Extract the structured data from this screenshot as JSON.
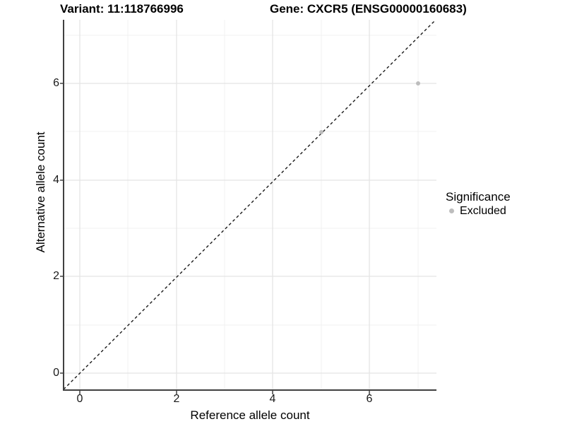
{
  "titles": {
    "variant": "Variant: 11:118766996",
    "gene": "Gene: CXCR5 (ENSG00000160683)"
  },
  "chart_data": {
    "type": "scatter",
    "title_left": "Variant: 11:118766996",
    "title_right": "Gene: CXCR5 (ENSG00000160683)",
    "xlabel": "Reference allele count",
    "ylabel": "Alternative allele count",
    "x_tick_labels": [
      "0",
      "2",
      "4",
      "6"
    ],
    "y_tick_labels": [
      "0",
      "2",
      "4",
      "6"
    ],
    "x_ticks": [
      0,
      2,
      4,
      6
    ],
    "y_ticks": [
      0,
      2,
      4,
      6
    ],
    "xlim": [
      -0.35,
      7.4
    ],
    "ylim": [
      -0.35,
      7.35
    ],
    "grid": "major and minor gridlines on, light gray",
    "points": [
      {
        "x": 5,
        "y": 5,
        "significance": "Excluded"
      },
      {
        "x": 7,
        "y": 6,
        "significance": "Excluded"
      }
    ],
    "reference_line": {
      "type": "identity y=x",
      "style": "dashed",
      "color": "#1a1a1a"
    },
    "legend": {
      "position": "right",
      "title": "Significance",
      "items": [
        {
          "label": "Excluded",
          "color": "#bdbdbd",
          "marker": "circle"
        }
      ]
    }
  },
  "colors": {
    "background": "#ffffff",
    "axis_line": "#404040",
    "major_grid": "#e4e4e4",
    "minor_grid": "#f0f0f0",
    "point": "#bdbdbd",
    "dashed_line": "#1a1a1a"
  }
}
